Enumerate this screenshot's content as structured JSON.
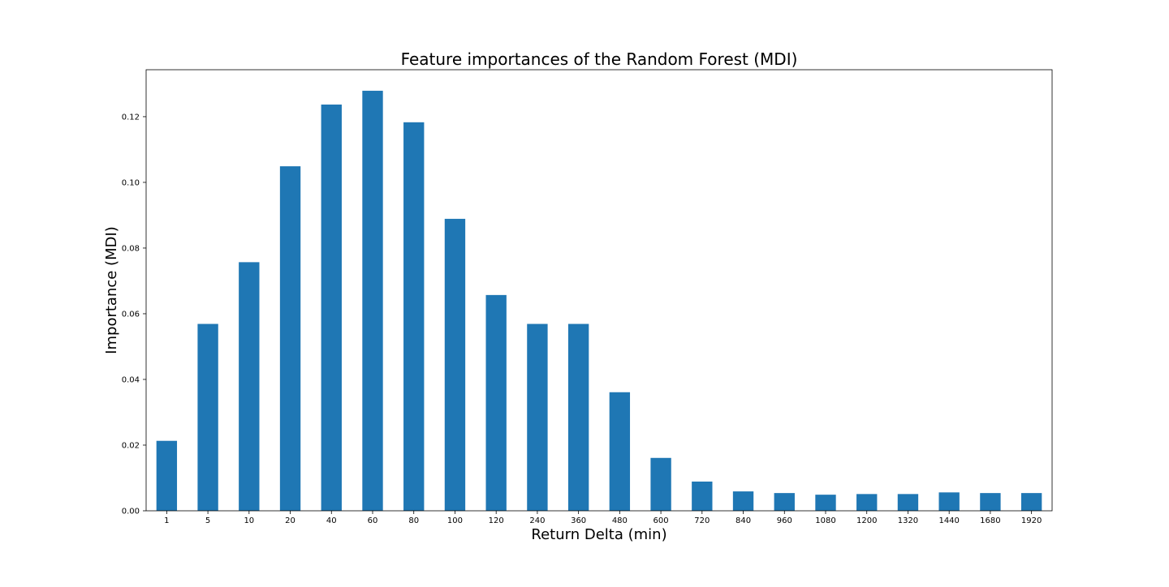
{
  "chart_data": {
    "type": "bar",
    "title": "Feature importances of the Random Forest (MDI)",
    "xlabel": "Return Delta (min)",
    "ylabel": "Importance (MDI)",
    "categories": [
      "1",
      "5",
      "10",
      "20",
      "40",
      "60",
      "80",
      "100",
      "120",
      "240",
      "360",
      "480",
      "600",
      "720",
      "840",
      "960",
      "1080",
      "1200",
      "1320",
      "1440",
      "1680",
      "1920"
    ],
    "values": [
      0.0213,
      0.0569,
      0.0757,
      0.1049,
      0.1237,
      0.1279,
      0.1183,
      0.0889,
      0.0657,
      0.0569,
      0.0569,
      0.0361,
      0.0161,
      0.0089,
      0.0059,
      0.0054,
      0.0049,
      0.0051,
      0.0051,
      0.0056,
      0.0054,
      0.0054
    ],
    "ylim": [
      0,
      0.1343
    ],
    "yticks": [
      "0.00",
      "0.02",
      "0.04",
      "0.06",
      "0.08",
      "0.10",
      "0.12"
    ],
    "grid": false,
    "bar_color": "#1f77b4"
  }
}
